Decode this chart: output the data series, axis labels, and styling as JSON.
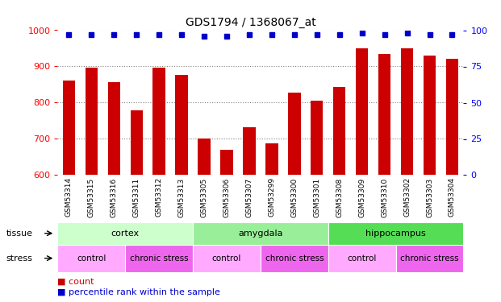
{
  "title": "GDS1794 / 1368067_at",
  "samples": [
    "GSM53314",
    "GSM53315",
    "GSM53316",
    "GSM53311",
    "GSM53312",
    "GSM53313",
    "GSM53305",
    "GSM53306",
    "GSM53307",
    "GSM53299",
    "GSM53300",
    "GSM53301",
    "GSM53308",
    "GSM53309",
    "GSM53310",
    "GSM53302",
    "GSM53303",
    "GSM53304"
  ],
  "counts": [
    862,
    897,
    856,
    779,
    897,
    876,
    701,
    671,
    732,
    688,
    828,
    806,
    843,
    950,
    934,
    950,
    929,
    920
  ],
  "percentiles": [
    97,
    97,
    97,
    97,
    97,
    97,
    96,
    96,
    97,
    97,
    97,
    97,
    97,
    98,
    97,
    98,
    97,
    97
  ],
  "ylim": [
    600,
    1000
  ],
  "yticks": [
    600,
    700,
    800,
    900,
    1000
  ],
  "right_yticks": [
    0,
    25,
    50,
    75,
    100
  ],
  "right_ylim": [
    0,
    100
  ],
  "bar_color": "#cc0000",
  "dot_color": "#0000cc",
  "tissue_groups": [
    {
      "label": "cortex",
      "start": 0,
      "end": 6,
      "color": "#ccffcc"
    },
    {
      "label": "amygdala",
      "start": 6,
      "end": 12,
      "color": "#99ee99"
    },
    {
      "label": "hippocampus",
      "start": 12,
      "end": 18,
      "color": "#55dd55"
    }
  ],
  "stress_groups": [
    {
      "label": "control",
      "start": 0,
      "end": 3,
      "color": "#ffaaff"
    },
    {
      "label": "chronic stress",
      "start": 3,
      "end": 6,
      "color": "#ee66ee"
    },
    {
      "label": "control",
      "start": 6,
      "end": 9,
      "color": "#ffaaff"
    },
    {
      "label": "chronic stress",
      "start": 9,
      "end": 12,
      "color": "#ee66ee"
    },
    {
      "label": "control",
      "start": 12,
      "end": 15,
      "color": "#ffaaff"
    },
    {
      "label": "chronic stress",
      "start": 15,
      "end": 18,
      "color": "#ee66ee"
    }
  ],
  "bg_color": "#d8d8d8",
  "legend_count_color": "#cc0000",
  "legend_dot_color": "#0000cc"
}
